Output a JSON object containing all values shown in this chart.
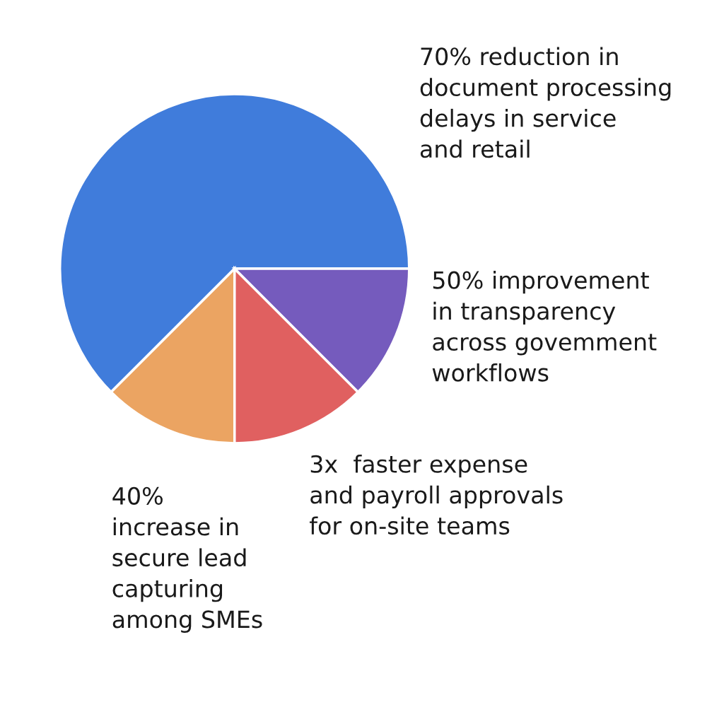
{
  "chart_data": {
    "type": "pie",
    "categories": [
      "70% reduction in\ndocument processing\ndelays in service\nand retail",
      "40%\nincrease in\nsecure lead\ncapturing\namong SMEs",
      "3x  faster expense\nand payroll approvals\nfor on-site teams",
      "50% improvement\nin transparency\nacross govemment\nworkflows"
    ],
    "values": [
      62.5,
      12.5,
      12.5,
      12.5
    ],
    "colors": [
      "#407cdb",
      "#eba462",
      "#e06060",
      "#755bbd"
    ]
  }
}
